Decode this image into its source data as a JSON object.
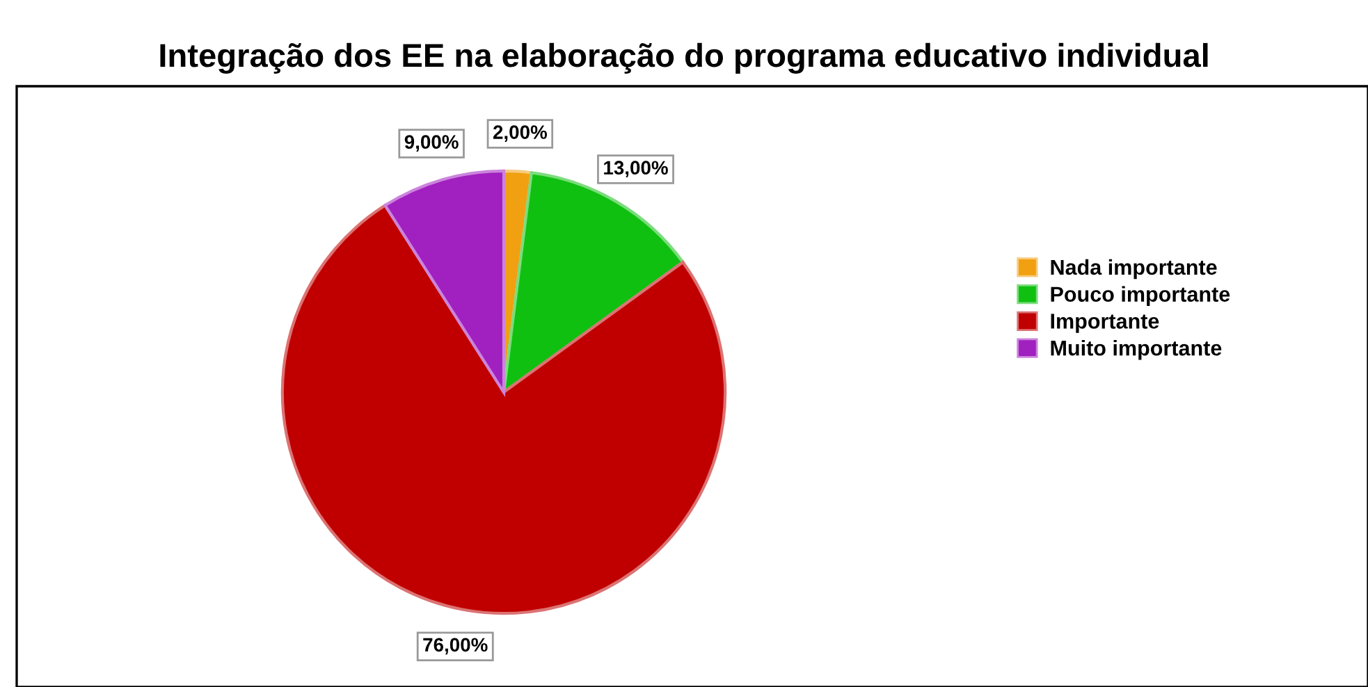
{
  "chart_data": {
    "type": "pie",
    "title": "Integração dos EE na elaboração do programa educativo individual",
    "categories": [
      "Nada importante",
      "Pouco importante",
      "Importante",
      "Muito importante"
    ],
    "values": [
      2,
      13,
      76,
      9
    ],
    "value_labels": [
      "2,00%",
      "13,00%",
      "76,00%",
      "9,00%"
    ],
    "colors": [
      "#f0a010",
      "#10c010",
      "#c00000",
      "#a020c0"
    ],
    "legend": "right"
  }
}
